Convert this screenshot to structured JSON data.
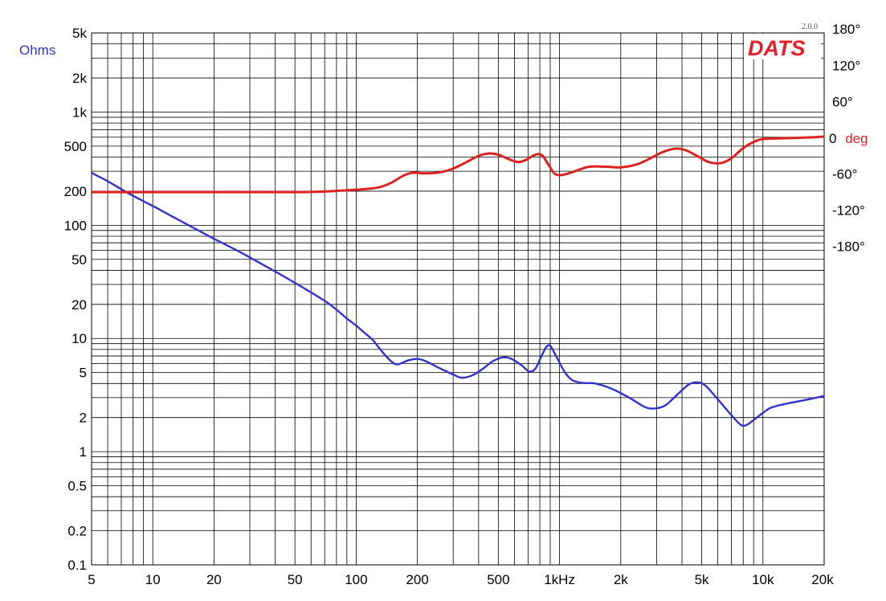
{
  "chart_data": {
    "type": "line",
    "brand": "DATS",
    "version": "2.0.0",
    "left_axis_label": "Ohms",
    "right_axis_label_value": "0",
    "right_axis_label_unit": "deg",
    "x_scale": "log",
    "xlim": [
      5,
      20000
    ],
    "y_scale": "log",
    "ylim": [
      0.1,
      5000
    ],
    "y2lim": [
      -180,
      180
    ],
    "grid": true,
    "x_ticks": [
      {
        "v": 5,
        "label": "5"
      },
      {
        "v": 10,
        "label": "10"
      },
      {
        "v": 20,
        "label": "20"
      },
      {
        "v": 50,
        "label": "50"
      },
      {
        "v": 100,
        "label": "100"
      },
      {
        "v": 200,
        "label": "200"
      },
      {
        "v": 500,
        "label": "500"
      },
      {
        "v": 1000,
        "label": "1kHz"
      },
      {
        "v": 2000,
        "label": "2k"
      },
      {
        "v": 5000,
        "label": "5k"
      },
      {
        "v": 10000,
        "label": "10k"
      },
      {
        "v": 20000,
        "label": "20k"
      }
    ],
    "y_ticks": [
      {
        "v": 5000,
        "label": "5k"
      },
      {
        "v": 2000,
        "label": "2k"
      },
      {
        "v": 1000,
        "label": "1k"
      },
      {
        "v": 500,
        "label": "500"
      },
      {
        "v": 200,
        "label": "200"
      },
      {
        "v": 100,
        "label": "100"
      },
      {
        "v": 50,
        "label": "50"
      },
      {
        "v": 20,
        "label": "20"
      },
      {
        "v": 10,
        "label": "10"
      },
      {
        "v": 5,
        "label": "5"
      },
      {
        "v": 2,
        "label": "2"
      },
      {
        "v": 1,
        "label": "1"
      },
      {
        "v": 0.5,
        "label": "0.5"
      },
      {
        "v": 0.2,
        "label": "0.2"
      },
      {
        "v": 0.1,
        "label": "0.1"
      }
    ],
    "y2_ticks": [
      {
        "v": 180,
        "label": "180°"
      },
      {
        "v": 120,
        "label": "120°"
      },
      {
        "v": 60,
        "label": "60°"
      },
      {
        "v": -60,
        "label": "-60°"
      },
      {
        "v": -120,
        "label": "-120°"
      },
      {
        "v": -180,
        "label": "-180°"
      }
    ],
    "series": [
      {
        "name": "Ohms",
        "axis": "left",
        "color": "#3333cc",
        "points": [
          [
            5,
            290
          ],
          [
            6,
            245
          ],
          [
            7,
            208
          ],
          [
            8,
            182
          ],
          [
            10,
            148
          ],
          [
            12,
            124
          ],
          [
            15,
            100
          ],
          [
            20,
            76
          ],
          [
            25,
            62
          ],
          [
            30,
            52
          ],
          [
            40,
            39
          ],
          [
            50,
            31
          ],
          [
            60,
            25.5
          ],
          [
            70,
            21.5
          ],
          [
            80,
            18
          ],
          [
            90,
            15
          ],
          [
            100,
            13
          ],
          [
            110,
            11.2
          ],
          [
            120,
            9.8
          ],
          [
            130,
            8.2
          ],
          [
            140,
            7
          ],
          [
            150,
            6.2
          ],
          [
            160,
            5.9
          ],
          [
            180,
            6.4
          ],
          [
            200,
            6.6
          ],
          [
            220,
            6.3
          ],
          [
            250,
            5.6
          ],
          [
            300,
            4.8
          ],
          [
            330,
            4.5
          ],
          [
            370,
            4.7
          ],
          [
            420,
            5.4
          ],
          [
            470,
            6.3
          ],
          [
            530,
            6.8
          ],
          [
            580,
            6.6
          ],
          [
            650,
            5.8
          ],
          [
            710,
            5.1
          ],
          [
            760,
            5.4
          ],
          [
            810,
            6.8
          ],
          [
            860,
            8.4
          ],
          [
            900,
            8.6
          ],
          [
            950,
            7.3
          ],
          [
            1050,
            5.2
          ],
          [
            1150,
            4.3
          ],
          [
            1300,
            4.05
          ],
          [
            1500,
            4.0
          ],
          [
            1800,
            3.6
          ],
          [
            2200,
            3.0
          ],
          [
            2600,
            2.5
          ],
          [
            2900,
            2.4
          ],
          [
            3300,
            2.55
          ],
          [
            3800,
            3.2
          ],
          [
            4300,
            3.9
          ],
          [
            4700,
            4.1
          ],
          [
            5200,
            3.85
          ],
          [
            6000,
            2.9
          ],
          [
            7000,
            2.1
          ],
          [
            7800,
            1.72
          ],
          [
            8300,
            1.72
          ],
          [
            9000,
            1.9
          ],
          [
            10000,
            2.2
          ],
          [
            11000,
            2.45
          ],
          [
            13000,
            2.65
          ],
          [
            16000,
            2.85
          ],
          [
            20000,
            3.1
          ]
        ]
      },
      {
        "name": "deg",
        "axis": "right",
        "color": "#dd2222",
        "points": [
          [
            5,
            -90
          ],
          [
            10,
            -90
          ],
          [
            20,
            -90
          ],
          [
            50,
            -90
          ],
          [
            70,
            -89
          ],
          [
            90,
            -87
          ],
          [
            110,
            -85
          ],
          [
            130,
            -82
          ],
          [
            150,
            -74
          ],
          [
            170,
            -63
          ],
          [
            190,
            -58
          ],
          [
            220,
            -59
          ],
          [
            260,
            -57
          ],
          [
            300,
            -51
          ],
          [
            350,
            -40
          ],
          [
            400,
            -30
          ],
          [
            450,
            -26
          ],
          [
            500,
            -28
          ],
          [
            550,
            -34
          ],
          [
            620,
            -40
          ],
          [
            680,
            -37
          ],
          [
            760,
            -28
          ],
          [
            820,
            -29
          ],
          [
            880,
            -44
          ],
          [
            950,
            -60
          ],
          [
            1050,
            -61
          ],
          [
            1200,
            -55
          ],
          [
            1400,
            -48
          ],
          [
            1700,
            -48
          ],
          [
            2000,
            -49
          ],
          [
            2400,
            -44
          ],
          [
            2800,
            -34
          ],
          [
            3200,
            -24
          ],
          [
            3700,
            -18
          ],
          [
            4200,
            -21
          ],
          [
            4800,
            -31
          ],
          [
            5400,
            -40
          ],
          [
            6200,
            -42
          ],
          [
            7000,
            -34
          ],
          [
            8000,
            -17
          ],
          [
            9000,
            -7
          ],
          [
            10000,
            -2
          ],
          [
            12000,
            -1
          ],
          [
            15000,
            0
          ],
          [
            18000,
            1
          ],
          [
            20000,
            2
          ]
        ]
      }
    ]
  }
}
